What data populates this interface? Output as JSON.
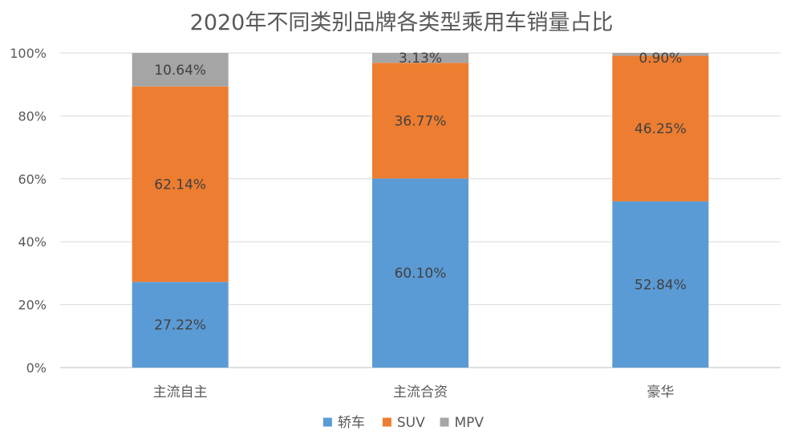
{
  "chart_data": {
    "type": "bar",
    "stacked": true,
    "title": "2020年不同类别品牌各类型乘用车销量占比",
    "categories": [
      "主流自主",
      "主流合资",
      "豪华"
    ],
    "y_ticks": [
      "0%",
      "20%",
      "40%",
      "60%",
      "80%",
      "100%"
    ],
    "ylim": [
      0,
      100
    ],
    "grid": true,
    "legend_position": "bottom",
    "series": [
      {
        "name": "轿车",
        "color": "#5B9BD5",
        "values": [
          27.22,
          60.1,
          52.84
        ],
        "labels": [
          "27.22%",
          "60.10%",
          "52.84%"
        ]
      },
      {
        "name": "SUV",
        "color": "#ED7D31",
        "values": [
          62.14,
          36.77,
          46.25
        ],
        "labels": [
          "62.14%",
          "36.77%",
          "46.25%"
        ]
      },
      {
        "name": "MPV",
        "color": "#A5A5A5",
        "values": [
          10.64,
          3.13,
          0.9
        ],
        "labels": [
          "10.64%",
          "3.13%",
          "0.90%"
        ]
      }
    ]
  }
}
